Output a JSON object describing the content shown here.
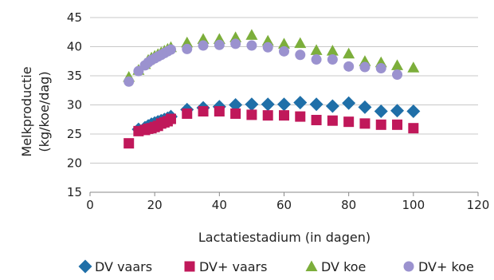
{
  "chart_data": {
    "type": "scatter",
    "xlabel": "Lactatiestadium (in dagen)",
    "ylabel_lines": [
      "Melkproductie",
      "(kg/koe/dag)"
    ],
    "xlim": [
      0,
      120
    ],
    "ylim": [
      15,
      45
    ],
    "xticks": [
      0,
      20,
      40,
      60,
      80,
      100,
      120
    ],
    "yticks": [
      15,
      20,
      25,
      30,
      35,
      40,
      45
    ],
    "grid": "horizontal",
    "legend_position": "bottom",
    "series": [
      {
        "name": "DV vaars",
        "marker": "diamond",
        "color": "#1f6fa8",
        "points": [
          [
            15,
            25.8
          ],
          [
            17,
            26.1
          ],
          [
            18,
            26.4
          ],
          [
            19,
            26.7
          ],
          [
            20,
            26.9
          ],
          [
            21,
            27.1
          ],
          [
            22,
            27.3
          ],
          [
            23,
            27.5
          ],
          [
            24,
            27.7
          ],
          [
            25,
            28
          ],
          [
            30,
            29.2
          ],
          [
            35,
            29.5
          ],
          [
            40,
            29.7
          ],
          [
            45,
            30
          ],
          [
            50,
            30.1
          ],
          [
            55,
            30.1
          ],
          [
            60,
            30.1
          ],
          [
            65,
            30.4
          ],
          [
            70,
            30.1
          ],
          [
            75,
            29.8
          ],
          [
            80,
            30.3
          ],
          [
            85,
            29.6
          ],
          [
            90,
            28.9
          ],
          [
            95,
            29
          ],
          [
            100,
            28.9
          ]
        ]
      },
      {
        "name": "DV+ vaars",
        "marker": "square",
        "color": "#c0185a",
        "points": [
          [
            12,
            23.4
          ],
          [
            15,
            25.5
          ],
          [
            17,
            25.7
          ],
          [
            18,
            25.9
          ],
          [
            19,
            26
          ],
          [
            20,
            26.2
          ],
          [
            21,
            26.4
          ],
          [
            22,
            26.8
          ],
          [
            23,
            27
          ],
          [
            24,
            27.2
          ],
          [
            25,
            27.6
          ],
          [
            30,
            28.5
          ],
          [
            35,
            28.9
          ],
          [
            40,
            28.9
          ],
          [
            45,
            28.5
          ],
          [
            50,
            28.3
          ],
          [
            55,
            28.2
          ],
          [
            60,
            28.2
          ],
          [
            65,
            28
          ],
          [
            70,
            27.4
          ],
          [
            75,
            27.3
          ],
          [
            80,
            27.1
          ],
          [
            85,
            26.8
          ],
          [
            90,
            26.6
          ],
          [
            95,
            26.6
          ],
          [
            100,
            26
          ]
        ]
      },
      {
        "name": "DV koe",
        "marker": "triangle",
        "color": "#7cae3b",
        "points": [
          [
            12,
            34.8
          ],
          [
            15,
            36
          ],
          [
            17,
            37
          ],
          [
            18,
            37.7
          ],
          [
            19,
            38.1
          ],
          [
            20,
            38.4
          ],
          [
            21,
            38.7
          ],
          [
            22,
            39
          ],
          [
            23,
            39.3
          ],
          [
            24,
            39.6
          ],
          [
            25,
            39.9
          ],
          [
            30,
            40.7
          ],
          [
            35,
            41.3
          ],
          [
            40,
            41.3
          ],
          [
            45,
            41.6
          ],
          [
            50,
            42
          ],
          [
            55,
            41
          ],
          [
            60,
            40.5
          ],
          [
            65,
            40.6
          ],
          [
            70,
            39.4
          ],
          [
            75,
            39.3
          ],
          [
            80,
            38.8
          ],
          [
            85,
            37.5
          ],
          [
            90,
            37.3
          ],
          [
            95,
            36.8
          ],
          [
            100,
            36.4
          ]
        ]
      },
      {
        "name": "DV+ koe",
        "marker": "circle",
        "color": "#9b92cf",
        "points": [
          [
            12,
            34
          ],
          [
            15,
            35.8
          ],
          [
            17,
            36.8
          ],
          [
            18,
            37.3
          ],
          [
            19,
            37.7
          ],
          [
            20,
            38
          ],
          [
            21,
            38.3
          ],
          [
            22,
            38.6
          ],
          [
            23,
            38.9
          ],
          [
            24,
            39.2
          ],
          [
            25,
            39.5
          ],
          [
            30,
            39.6
          ],
          [
            35,
            40.2
          ],
          [
            40,
            40.3
          ],
          [
            45,
            40.5
          ],
          [
            50,
            40.2
          ],
          [
            55,
            39.9
          ],
          [
            60,
            39.2
          ],
          [
            65,
            38.6
          ],
          [
            70,
            37.8
          ],
          [
            75,
            37.8
          ],
          [
            80,
            36.6
          ],
          [
            85,
            36.5
          ],
          [
            90,
            36.3
          ],
          [
            95,
            35.2
          ]
        ]
      }
    ]
  }
}
